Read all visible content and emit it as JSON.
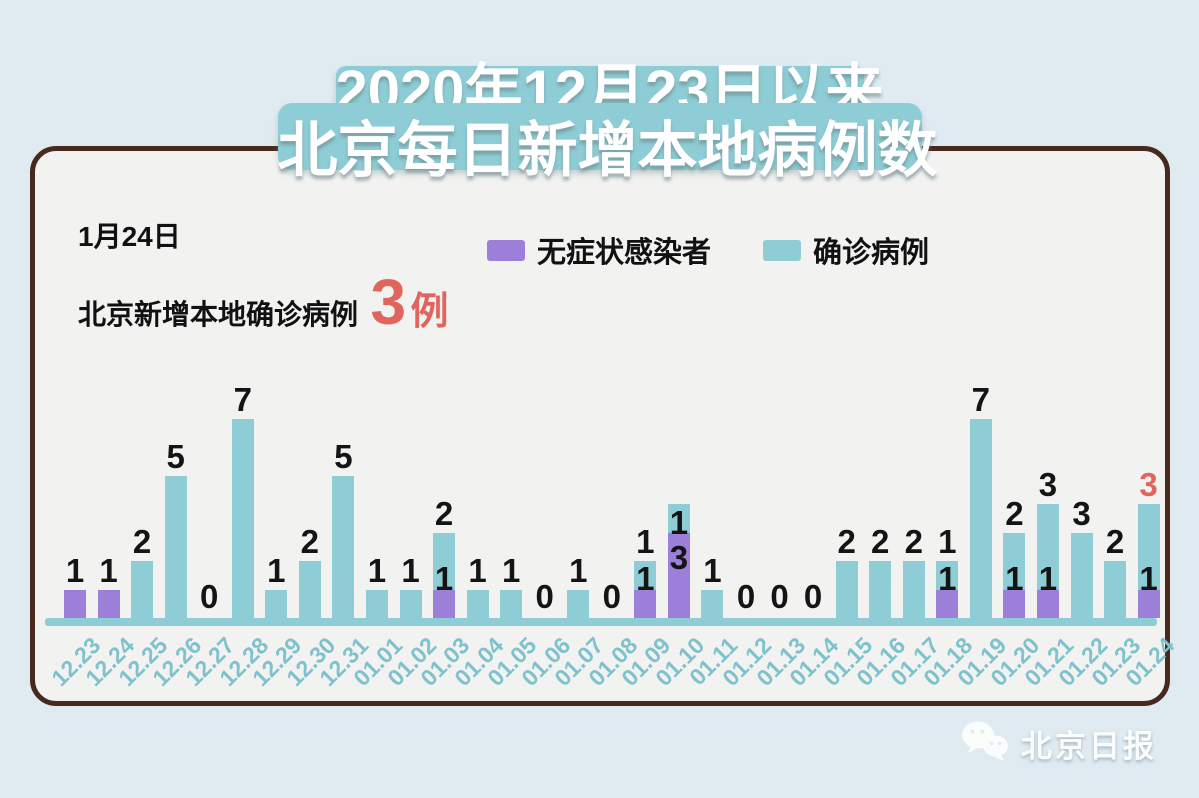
{
  "title": {
    "line1": "2020年12月23日以来",
    "line2": "北京每日新增本地病例数"
  },
  "subtitle": {
    "date_line": "1月24日",
    "text": "北京新增本地确诊病例",
    "count": "3",
    "unit": "例"
  },
  "legend": {
    "asymptomatic_label": "无症状感染者",
    "confirmed_label": "确诊病例"
  },
  "footer": {
    "source": "北京日报"
  },
  "colors": {
    "confirmed_teal": "#8ecdd5",
    "asymptomatic_purple": "#9c7fd8",
    "highlight_red": "#e0655c",
    "axis_label_teal": "#7fc2ce",
    "card_background": "#f2f2f1",
    "page_background": "#dfeaf1",
    "card_border_brown": "#48291d"
  },
  "chart_data": {
    "type": "bar",
    "stacked": true,
    "title": "2020年12月23日以来北京每日新增本地病例数",
    "xlabel": "",
    "ylabel": "",
    "ylim": [
      0,
      8
    ],
    "grid": false,
    "legend_position": "top",
    "value_labels": true,
    "categories": [
      "12.23",
      "12.24",
      "12.25",
      "12.26",
      "12.27",
      "12.28",
      "12.29",
      "12.30",
      "12.31",
      "01.01",
      "01.02",
      "01.03",
      "01.04",
      "01.05",
      "01.06",
      "01.07",
      "01.08",
      "01.09",
      "01.10",
      "01.11",
      "01.12",
      "01.13",
      "01.14",
      "01.15",
      "01.16",
      "01.17",
      "01.18",
      "01.19",
      "01.20",
      "01.21",
      "01.22",
      "01.23",
      "01.24"
    ],
    "series": [
      {
        "name": "无症状感染者",
        "color": "#9c7fd8",
        "values": [
          1,
          1,
          0,
          0,
          0,
          0,
          0,
          0,
          0,
          0,
          0,
          1,
          0,
          0,
          0,
          0,
          0,
          1,
          3,
          0,
          0,
          0,
          0,
          0,
          0,
          0,
          1,
          0,
          1,
          1,
          0,
          0,
          1
        ]
      },
      {
        "name": "确诊病例",
        "color": "#8ecdd5",
        "values": [
          0,
          0,
          2,
          5,
          0,
          7,
          1,
          2,
          5,
          1,
          1,
          2,
          1,
          1,
          0,
          1,
          0,
          1,
          1,
          1,
          0,
          0,
          0,
          2,
          2,
          2,
          1,
          7,
          2,
          3,
          3,
          2,
          3
        ]
      }
    ],
    "inside_label_categories": [
      "01.10"
    ],
    "highlight_label": {
      "category": "01.24",
      "series": "确诊病例",
      "color": "#e0655c"
    }
  }
}
